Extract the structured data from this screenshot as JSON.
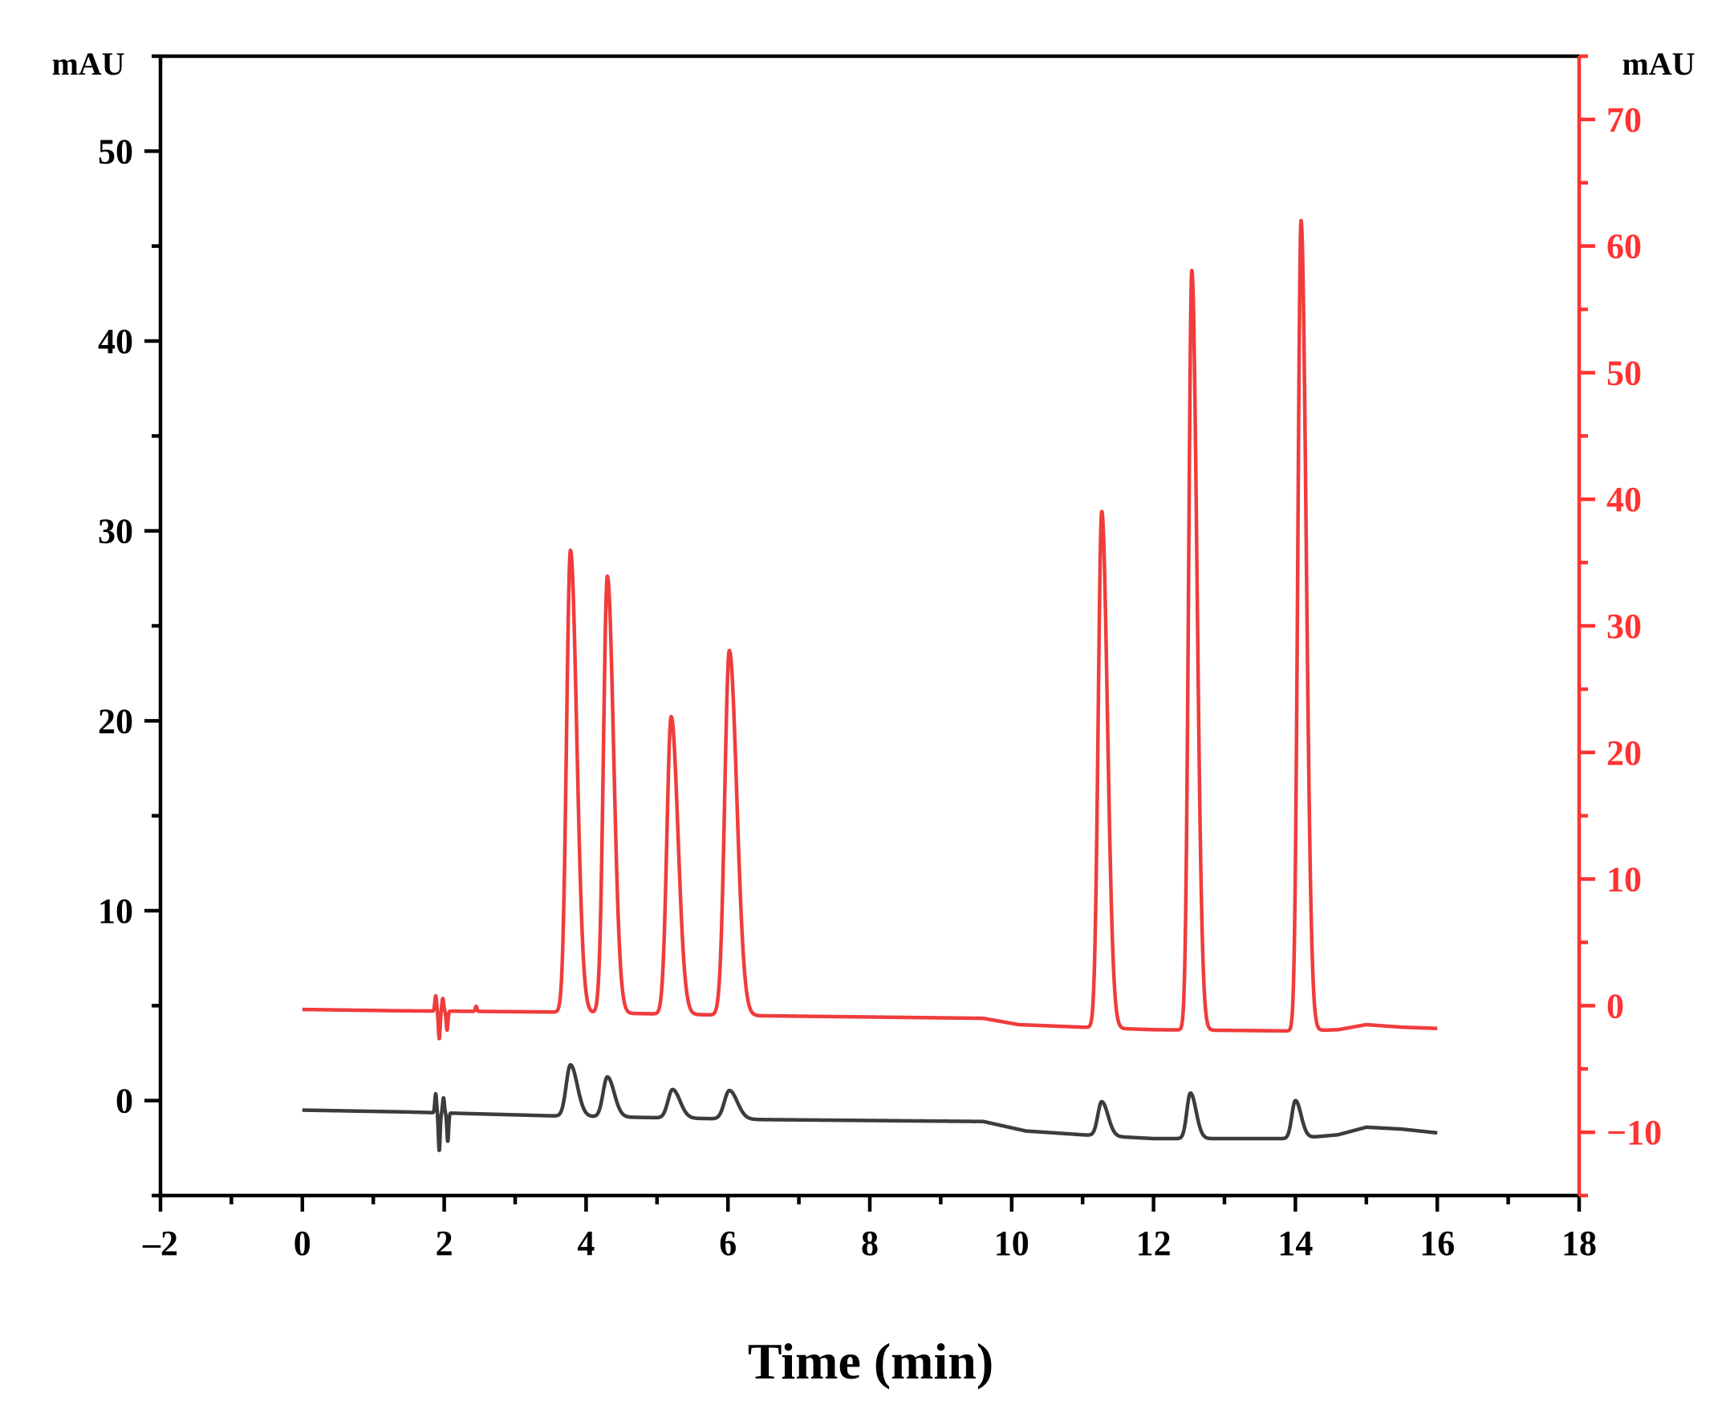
{
  "chart_data": {
    "type": "line",
    "xlabel": "Time (min)",
    "xlim": [
      -2,
      18
    ],
    "x_ticks": [
      -2,
      0,
      2,
      4,
      6,
      8,
      10,
      12,
      14,
      16,
      18
    ],
    "x_tick_labels": [
      "–2",
      "0",
      "2",
      "4",
      "6",
      "8",
      "10",
      "12",
      "14",
      "16",
      "18"
    ],
    "left_axis": {
      "unit_label": "mAU",
      "ylim": [
        -5,
        55
      ],
      "ticks": [
        0,
        10,
        20,
        30,
        40,
        50
      ],
      "tick_labels": [
        "0",
        "10",
        "20",
        "30",
        "40",
        "50"
      ],
      "color": "#000000"
    },
    "right_axis": {
      "unit_label": "mAU",
      "ylim": [
        -15,
        75
      ],
      "ticks": [
        -10,
        0,
        10,
        20,
        30,
        40,
        50,
        60,
        70
      ],
      "tick_labels": [
        "−10",
        "0",
        "10",
        "20",
        "30",
        "40",
        "50",
        "60",
        "70"
      ],
      "color": "#ff3333"
    },
    "grid": false,
    "legend": "none",
    "series": [
      {
        "axis": "right",
        "color": "#f03c3c",
        "baseline": [
          [
            0,
            -0.3
          ],
          [
            1.3,
            -0.4
          ],
          [
            3.5,
            -0.5
          ],
          [
            6.5,
            -0.8
          ],
          [
            9.6,
            -1.0
          ],
          [
            10.1,
            -1.5
          ],
          [
            11.0,
            -1.7
          ],
          [
            12.0,
            -1.9
          ],
          [
            14.0,
            -2.0
          ],
          [
            14.6,
            -1.9
          ],
          [
            15.0,
            -1.5
          ],
          [
            15.5,
            -1.7
          ],
          [
            16.0,
            -1.8
          ]
        ],
        "peaks": [
          {
            "t": 3.78,
            "h": 36.5,
            "w": 0.055
          },
          {
            "t": 4.3,
            "h": 34.5,
            "w": 0.055
          },
          {
            "t": 5.2,
            "h": 23.5,
            "w": 0.06
          },
          {
            "t": 6.02,
            "h": 28.8,
            "w": 0.065
          },
          {
            "t": 11.27,
            "h": 40.8,
            "w": 0.05
          },
          {
            "t": 12.54,
            "h": 60.0,
            "w": 0.045
          },
          {
            "t": 14.08,
            "h": 64.0,
            "w": 0.045
          }
        ],
        "spikes": [
          {
            "t": 1.88,
            "a": 1.2
          },
          {
            "t": 1.93,
            "a": -2.2
          },
          {
            "t": 1.98,
            "a": 1.0
          },
          {
            "t": 2.04,
            "a": -1.5
          },
          {
            "t": 2.45,
            "a": 0.4
          }
        ]
      },
      {
        "axis": "left",
        "color": "#3c3c3c",
        "baseline": [
          [
            0,
            -0.5
          ],
          [
            1.5,
            -0.6
          ],
          [
            3.5,
            -0.8
          ],
          [
            6.5,
            -1.0
          ],
          [
            9.6,
            -1.1
          ],
          [
            10.2,
            -1.6
          ],
          [
            11.0,
            -1.8
          ],
          [
            12.0,
            -2.0
          ],
          [
            14.0,
            -2.0
          ],
          [
            14.6,
            -1.8
          ],
          [
            15.0,
            -1.4
          ],
          [
            15.5,
            -1.5
          ],
          [
            16.0,
            -1.7
          ]
        ],
        "peaks": [
          {
            "t": 3.78,
            "h": 2.7,
            "w": 0.06
          },
          {
            "t": 4.3,
            "h": 2.1,
            "w": 0.06
          },
          {
            "t": 5.22,
            "h": 1.5,
            "w": 0.065
          },
          {
            "t": 6.02,
            "h": 1.5,
            "w": 0.07
          },
          {
            "t": 11.27,
            "h": 1.8,
            "w": 0.055
          },
          {
            "t": 12.52,
            "h": 2.4,
            "w": 0.05
          },
          {
            "t": 14.0,
            "h": 2.0,
            "w": 0.05
          }
        ],
        "spikes": [
          {
            "t": 1.88,
            "a": 1.0
          },
          {
            "t": 1.93,
            "a": -2.0
          },
          {
            "t": 1.99,
            "a": 0.8
          },
          {
            "t": 2.05,
            "a": -1.5
          }
        ]
      }
    ]
  }
}
